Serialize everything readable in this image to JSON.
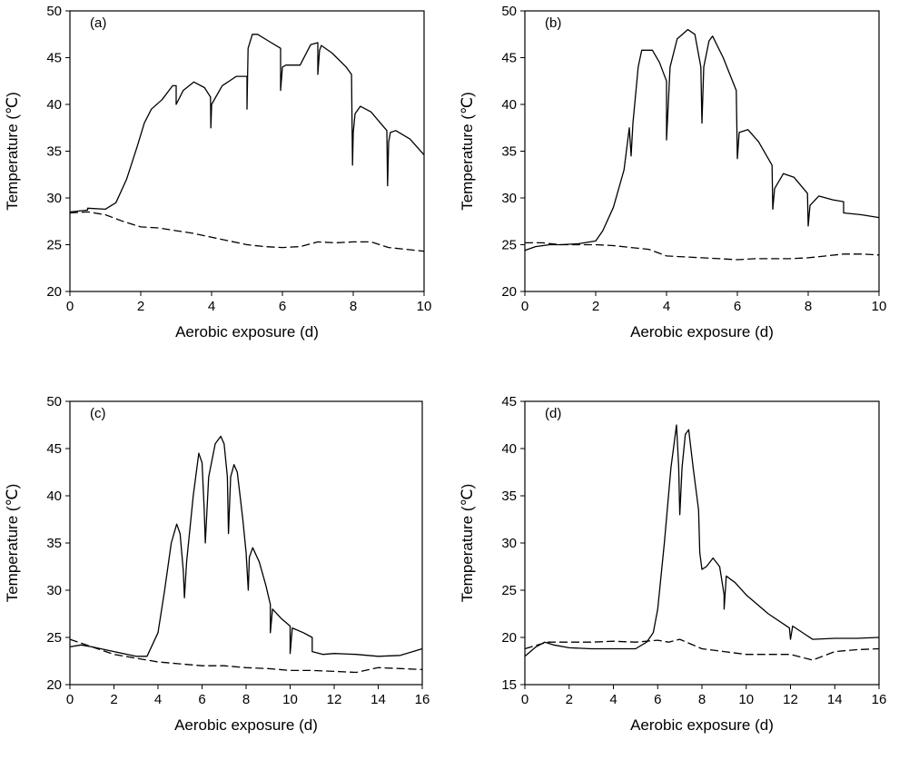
{
  "chart_data": [
    {
      "type": "line",
      "panel_label": "(a)",
      "xlabel": "Aerobic exposure (d)",
      "ylabel": "Temperature (℃)",
      "xlim": [
        0,
        10
      ],
      "ylim": [
        20,
        50
      ],
      "xticks": [
        0,
        2,
        4,
        6,
        8,
        10
      ],
      "yticks": [
        20,
        25,
        30,
        35,
        40,
        45,
        50
      ],
      "grid": false,
      "series": [
        {
          "style": "solid",
          "x": [
            0,
            0.5,
            0.5,
            1,
            1,
            1.3,
            1.6,
            1.9,
            2.1,
            2.3,
            2.6,
            2.9,
            3,
            3,
            3.2,
            3.5,
            3.8,
            3.97,
            3.98,
            4,
            4,
            4.3,
            4.7,
            5,
            5,
            5.03,
            5.15,
            5.3,
            5.6,
            5.95,
            5.95,
            6,
            6,
            6.1,
            6.5,
            6.8,
            7,
            7,
            7.05,
            7.1,
            7.4,
            7.8,
            7.95,
            7.98,
            8,
            8.05,
            8.2,
            8.5,
            8.95,
            8.97,
            9,
            9.05,
            9.2,
            9.6,
            10
          ],
          "y": [
            28.5,
            28.7,
            28.9,
            28.8,
            28.8,
            29.5,
            32,
            35.5,
            38,
            39.5,
            40.5,
            42,
            42,
            40,
            41.5,
            42.4,
            41.8,
            40.8,
            37.5,
            39.8,
            40,
            42,
            43,
            43,
            39.5,
            46,
            47.5,
            47.5,
            46.8,
            46,
            41.5,
            44,
            44,
            44.2,
            44.2,
            46.4,
            46.6,
            43.2,
            45.8,
            46.3,
            45.5,
            44,
            43.2,
            33.5,
            37,
            39,
            39.8,
            39.2,
            37.2,
            31.3,
            36,
            37,
            37.2,
            36.3,
            34.6
          ]
        },
        {
          "style": "dashed",
          "x": [
            0,
            0.5,
            1,
            1.5,
            2,
            2.5,
            3,
            3.5,
            4,
            4.5,
            5,
            5.5,
            6,
            6.5,
            7,
            7.5,
            8,
            8.5,
            9,
            9.5,
            10
          ],
          "y": [
            28.4,
            28.5,
            28.2,
            27.5,
            26.9,
            26.8,
            26.5,
            26.2,
            25.8,
            25.4,
            25,
            24.8,
            24.7,
            24.8,
            25.3,
            25.2,
            25.3,
            25.3,
            24.7,
            24.5,
            24.3
          ]
        }
      ]
    },
    {
      "type": "line",
      "panel_label": "(b)",
      "xlabel": "Aerobic exposure (d)",
      "ylabel": "Temperature (℃)",
      "xlim": [
        0,
        10
      ],
      "ylim": [
        20,
        50
      ],
      "xticks": [
        0,
        2,
        4,
        6,
        8,
        10
      ],
      "yticks": [
        20,
        25,
        30,
        35,
        40,
        45,
        50
      ],
      "grid": false,
      "series": [
        {
          "style": "solid",
          "x": [
            0,
            0.3,
            0.7,
            1,
            1.5,
            2,
            2.2,
            2.5,
            2.8,
            2.95,
            3,
            3.05,
            3.2,
            3.3,
            3.6,
            3.8,
            4,
            4,
            4.1,
            4.3,
            4.6,
            4.8,
            4.97,
            5,
            5.05,
            5.2,
            5.3,
            5.6,
            5.97,
            6,
            6.05,
            6.3,
            6.6,
            6.98,
            7,
            7.05,
            7.3,
            7.6,
            7.98,
            8,
            8.05,
            8.3,
            8.7,
            9,
            9,
            9.5,
            10
          ],
          "y": [
            24.4,
            24.8,
            25,
            25,
            25.1,
            25.4,
            26.5,
            29,
            33,
            37.5,
            34.5,
            38,
            44,
            45.8,
            45.8,
            44.5,
            42.5,
            36.2,
            44,
            47,
            48,
            47.5,
            44,
            38,
            44,
            46.8,
            47.3,
            45,
            41.5,
            34.2,
            37,
            37.3,
            36,
            33.5,
            28.8,
            31,
            32.6,
            32.2,
            30.5,
            27,
            29.2,
            30.2,
            29.8,
            29.6,
            28.4,
            28.2,
            27.9
          ]
        },
        {
          "style": "dashed",
          "x": [
            0,
            0.5,
            1,
            1.5,
            2,
            2.5,
            3,
            3.5,
            4,
            4.5,
            5,
            5.5,
            6,
            6.5,
            7,
            7.5,
            8,
            8.5,
            9,
            9.5,
            10
          ],
          "y": [
            25.2,
            25.2,
            25,
            25,
            25,
            24.9,
            24.7,
            24.5,
            23.8,
            23.7,
            23.6,
            23.5,
            23.4,
            23.5,
            23.5,
            23.5,
            23.6,
            23.8,
            24,
            24,
            23.9
          ]
        }
      ]
    },
    {
      "type": "line",
      "panel_label": "(c)",
      "xlabel": "Aerobic exposure (d)",
      "ylabel": "Temperature (℃)",
      "xlim": [
        0,
        16
      ],
      "ylim": [
        20,
        50
      ],
      "xticks": [
        0,
        2,
        4,
        6,
        8,
        10,
        12,
        14,
        16
      ],
      "yticks": [
        20,
        25,
        30,
        35,
        40,
        45,
        50
      ],
      "grid": false,
      "series": [
        {
          "style": "solid",
          "x": [
            0,
            0.5,
            1,
            2,
            3,
            3.5,
            4,
            4.3,
            4.6,
            4.85,
            5,
            5.15,
            5.2,
            5.3,
            5.6,
            5.85,
            6,
            6.1,
            6.15,
            6.3,
            6.6,
            6.85,
            7,
            7.15,
            7.2,
            7.3,
            7.45,
            7.6,
            7.85,
            8,
            8.1,
            8.15,
            8.3,
            8.6,
            8.9,
            9.1,
            9.1,
            9.2,
            9.6,
            10,
            10,
            10.1,
            10.6,
            11,
            11,
            11.5,
            12,
            13,
            14,
            15,
            16
          ],
          "y": [
            24,
            24.2,
            24,
            23.5,
            23,
            23,
            25.5,
            30,
            35,
            37,
            36,
            32,
            29.2,
            33,
            40,
            44.5,
            43.5,
            38.5,
            35,
            42,
            45.5,
            46.3,
            45.5,
            42,
            36,
            42,
            43.3,
            42.5,
            37.5,
            34,
            30,
            33.5,
            34.5,
            33,
            30.5,
            28.5,
            25.5,
            28,
            27,
            26.2,
            23.3,
            26,
            25.5,
            25,
            23.5,
            23.2,
            23.3,
            23.2,
            23,
            23.1,
            23.8
          ]
        },
        {
          "style": "dashed",
          "x": [
            0,
            1,
            2,
            3,
            4,
            5,
            6,
            7,
            8,
            9,
            10,
            11,
            12,
            13,
            14,
            15,
            16
          ],
          "y": [
            24.8,
            24,
            23.2,
            22.8,
            22.4,
            22.2,
            22,
            22,
            21.8,
            21.7,
            21.5,
            21.5,
            21.4,
            21.3,
            21.8,
            21.7,
            21.6
          ]
        }
      ]
    },
    {
      "type": "line",
      "panel_label": "(d)",
      "xlabel": "Aerobic exposure (d)",
      "ylabel": "Temperature (℃)",
      "xlim": [
        0,
        16
      ],
      "ylim": [
        15,
        45
      ],
      "xticks": [
        0,
        2,
        4,
        6,
        8,
        10,
        12,
        14,
        16
      ],
      "yticks": [
        15,
        20,
        25,
        30,
        35,
        40,
        45
      ],
      "grid": false,
      "series": [
        {
          "style": "solid",
          "x": [
            0,
            0.5,
            0.9,
            1.3,
            2,
            3,
            4,
            5,
            5.5,
            5.8,
            6,
            6.3,
            6.6,
            6.85,
            6.95,
            7,
            7.1,
            7.25,
            7.4,
            7.6,
            7.85,
            7.9,
            8,
            8.2,
            8.5,
            8.8,
            9,
            9,
            9.1,
            9.5,
            10,
            11,
            11.95,
            12,
            12.1,
            13,
            14,
            15,
            16
          ],
          "y": [
            18,
            19,
            19.5,
            19.2,
            18.9,
            18.8,
            18.8,
            18.8,
            19.5,
            20.5,
            23,
            30,
            38,
            42.5,
            38,
            33,
            38,
            41.5,
            42,
            38,
            33.5,
            29,
            27.2,
            27.5,
            28.4,
            27.5,
            24.5,
            23,
            26.5,
            25.8,
            24.5,
            22.5,
            21,
            19.8,
            21.2,
            19.8,
            19.9,
            19.9,
            20
          ]
        },
        {
          "style": "dashed",
          "x": [
            0,
            1,
            2,
            3,
            4,
            5,
            6,
            6.5,
            7,
            8,
            9,
            10,
            11,
            12,
            13,
            14,
            15,
            16
          ],
          "y": [
            18.8,
            19.5,
            19.5,
            19.5,
            19.6,
            19.5,
            19.7,
            19.5,
            19.8,
            18.8,
            18.5,
            18.2,
            18.2,
            18.2,
            17.6,
            18.5,
            18.7,
            18.8
          ]
        }
      ]
    }
  ]
}
